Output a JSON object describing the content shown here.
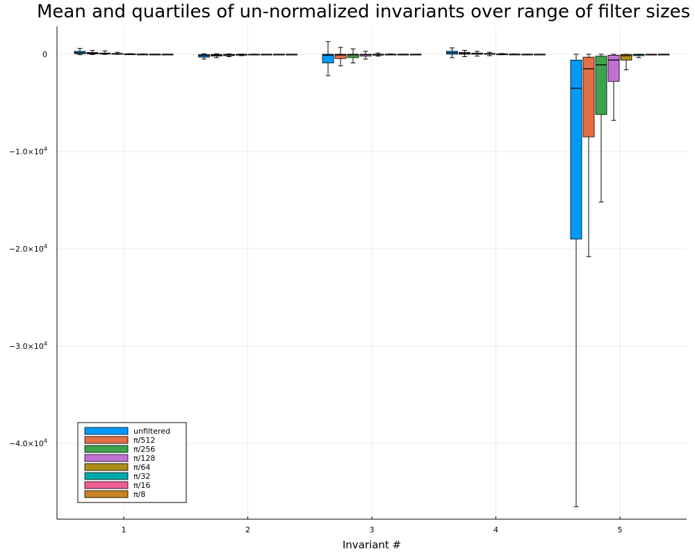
{
  "chart_data": {
    "type": "box",
    "title": "Mean and quartiles of un-normalized invariants over range of filter sizes",
    "xlabel": "Invariant #",
    "ylabel": "",
    "categories": [
      "1",
      "2",
      "3",
      "4",
      "5"
    ],
    "ylim": [
      -48000,
      2800
    ],
    "y_ticks": [
      {
        "value": 0,
        "label": "0"
      },
      {
        "value": -10000,
        "label": "−1.0×10",
        "exp": "4"
      },
      {
        "value": -20000,
        "label": "−2.0×10",
        "exp": "4"
      },
      {
        "value": -30000,
        "label": "−3.0×10",
        "exp": "4"
      },
      {
        "value": -40000,
        "label": "−4.0×10",
        "exp": "4"
      }
    ],
    "grid": true,
    "legend_position": "bottom-left",
    "series": [
      {
        "name": "unfiltered",
        "color": "#009af9",
        "boxes": [
          {
            "low": -50,
            "q1": 50,
            "median": 150,
            "q3": 300,
            "high": 600
          },
          {
            "low": -500,
            "q1": -300,
            "median": -150,
            "q3": -30,
            "high": 50
          },
          {
            "low": -2200,
            "q1": -900,
            "median": -100,
            "q3": 0,
            "high": 1300
          },
          {
            "low": -350,
            "q1": 0,
            "median": 150,
            "q3": 300,
            "high": 650
          },
          {
            "low": -46500,
            "q1": -19000,
            "median": -3500,
            "q3": -600,
            "high": 0
          }
        ]
      },
      {
        "name": "π/512",
        "color": "#e26f46",
        "boxes": [
          {
            "low": -30,
            "q1": 30,
            "median": 100,
            "q3": 180,
            "high": 400
          },
          {
            "low": -350,
            "q1": -200,
            "median": -100,
            "q3": -20,
            "high": 40
          },
          {
            "low": -1200,
            "q1": -450,
            "median": -80,
            "q3": 0,
            "high": 700
          },
          {
            "low": -250,
            "q1": 0,
            "median": 80,
            "q3": 180,
            "high": 400
          },
          {
            "low": -20800,
            "q1": -8500,
            "median": -1500,
            "q3": -300,
            "high": 0
          }
        ]
      },
      {
        "name": "π/256",
        "color": "#3da44d",
        "boxes": [
          {
            "low": -20,
            "q1": 20,
            "median": 70,
            "q3": 120,
            "high": 350
          },
          {
            "low": -250,
            "q1": -150,
            "median": -60,
            "q3": -10,
            "high": 30
          },
          {
            "low": -900,
            "q1": -350,
            "median": -60,
            "q3": 0,
            "high": 550
          },
          {
            "low": -200,
            "q1": 0,
            "median": 50,
            "q3": 120,
            "high": 300
          },
          {
            "low": -15200,
            "q1": -6200,
            "median": -1100,
            "q3": -200,
            "high": 0
          }
        ]
      },
      {
        "name": "π/128",
        "color": "#c271d2",
        "boxes": [
          {
            "low": -10,
            "q1": 10,
            "median": 40,
            "q3": 80,
            "high": 200
          },
          {
            "low": -150,
            "q1": -100,
            "median": -40,
            "q3": 0,
            "high": 20
          },
          {
            "low": -500,
            "q1": -200,
            "median": -40,
            "q3": 0,
            "high": 300
          },
          {
            "low": -150,
            "q1": 0,
            "median": 30,
            "q3": 80,
            "high": 200
          },
          {
            "low": -6800,
            "q1": -2800,
            "median": -600,
            "q3": -100,
            "high": 0
          }
        ]
      },
      {
        "name": "π/64",
        "color": "#ac8d18",
        "boxes": [
          {
            "low": -5,
            "q1": 5,
            "median": 15,
            "q3": 30,
            "high": 60
          },
          {
            "low": -60,
            "q1": -30,
            "median": -10,
            "q3": 0,
            "high": 10
          },
          {
            "low": -200,
            "q1": -100,
            "median": -20,
            "q3": 0,
            "high": 120
          },
          {
            "low": -50,
            "q1": 0,
            "median": 10,
            "q3": 30,
            "high": 70
          },
          {
            "low": -1600,
            "q1": -600,
            "median": -150,
            "q3": -20,
            "high": 0
          }
        ]
      },
      {
        "name": "π/32",
        "color": "#00a9ad",
        "boxes": [
          {
            "low": -2,
            "q1": 0,
            "median": 5,
            "q3": 10,
            "high": 20
          },
          {
            "low": -20,
            "q1": -10,
            "median": -4,
            "q3": 0,
            "high": 4
          },
          {
            "low": -60,
            "q1": -30,
            "median": -6,
            "q3": 0,
            "high": 30
          },
          {
            "low": -20,
            "q1": 0,
            "median": 4,
            "q3": 10,
            "high": 25
          },
          {
            "low": -350,
            "q1": -150,
            "median": -40,
            "q3": -5,
            "high": 0
          }
        ]
      },
      {
        "name": "π/16",
        "color": "#ed5e93",
        "boxes": [
          {
            "low": 0,
            "q1": 0,
            "median": 2,
            "q3": 4,
            "high": 8
          },
          {
            "low": -8,
            "q1": -4,
            "median": -2,
            "q3": 0,
            "high": 2
          },
          {
            "low": -20,
            "q1": -10,
            "median": -2,
            "q3": 0,
            "high": 10
          },
          {
            "low": -8,
            "q1": 0,
            "median": 2,
            "q3": 4,
            "high": 8
          },
          {
            "low": -80,
            "q1": -30,
            "median": -8,
            "q3": -1,
            "high": 0
          }
        ]
      },
      {
        "name": "π/8",
        "color": "#c68225",
        "boxes": [
          {
            "low": 0,
            "q1": 0,
            "median": 1,
            "q3": 2,
            "high": 3
          },
          {
            "low": -3,
            "q1": -2,
            "median": -1,
            "q3": 0,
            "high": 1
          },
          {
            "low": -6,
            "q1": -3,
            "median": -1,
            "q3": 0,
            "high": 3
          },
          {
            "low": -3,
            "q1": 0,
            "median": 1,
            "q3": 2,
            "high": 3
          },
          {
            "low": -20,
            "q1": -8,
            "median": -2,
            "q3": 0,
            "high": 0
          }
        ]
      }
    ]
  }
}
